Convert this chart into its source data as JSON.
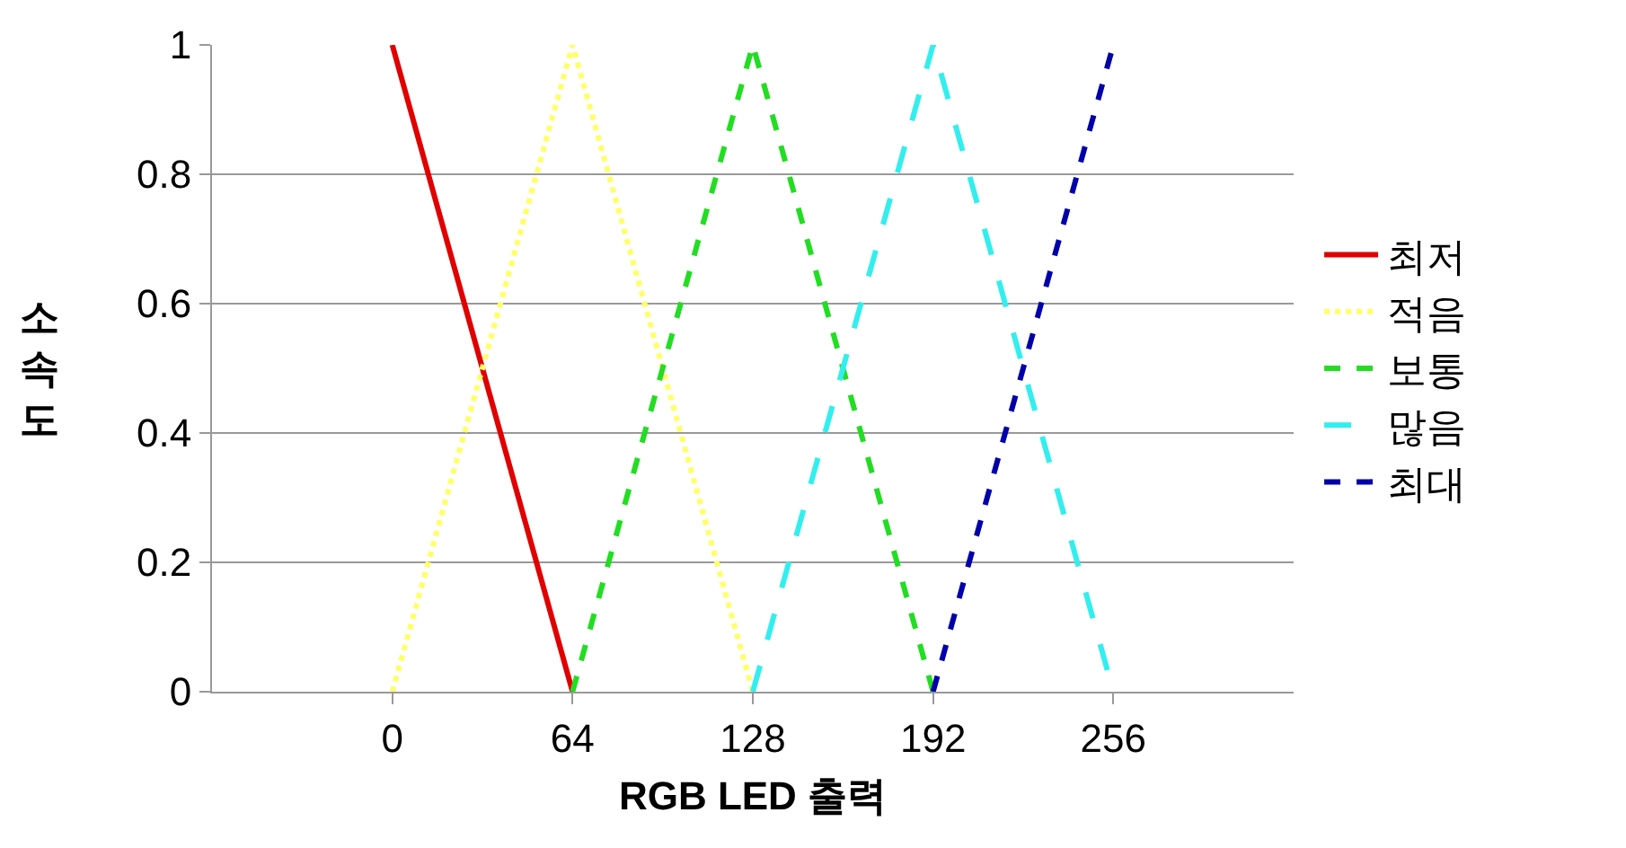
{
  "chart_data": {
    "type": "line",
    "xlabel": "RGB LED 출력",
    "ylabel": "소속도",
    "xlim": [
      -64,
      320
    ],
    "xticks": [
      0,
      64,
      128,
      192,
      256
    ],
    "ylim": [
      0,
      1
    ],
    "yticks": [
      0,
      0.2,
      0.4,
      0.6,
      0.8,
      1
    ],
    "grid": "y",
    "legend": "right",
    "marker": "none",
    "series": [
      {
        "name": "최저",
        "color": "#e00000",
        "line_style": "solid",
        "x": [
          0,
          64
        ],
        "values": [
          1,
          0
        ]
      },
      {
        "name": "적음",
        "color": "#ffff66",
        "line_style": "dotted",
        "x": [
          0,
          64,
          128
        ],
        "values": [
          0,
          1,
          0
        ]
      },
      {
        "name": "보통",
        "color": "#22dd22",
        "line_style": "dashed",
        "x": [
          64,
          128,
          192
        ],
        "values": [
          0,
          1,
          0
        ]
      },
      {
        "name": "많음",
        "color": "#33eeee",
        "line_style": "dashed",
        "x": [
          128,
          192,
          256
        ],
        "values": [
          0,
          1,
          0
        ]
      },
      {
        "name": "최대",
        "color": "#0000aa",
        "line_style": "dashed",
        "x": [
          192,
          256
        ],
        "values": [
          0,
          1
        ]
      }
    ]
  }
}
